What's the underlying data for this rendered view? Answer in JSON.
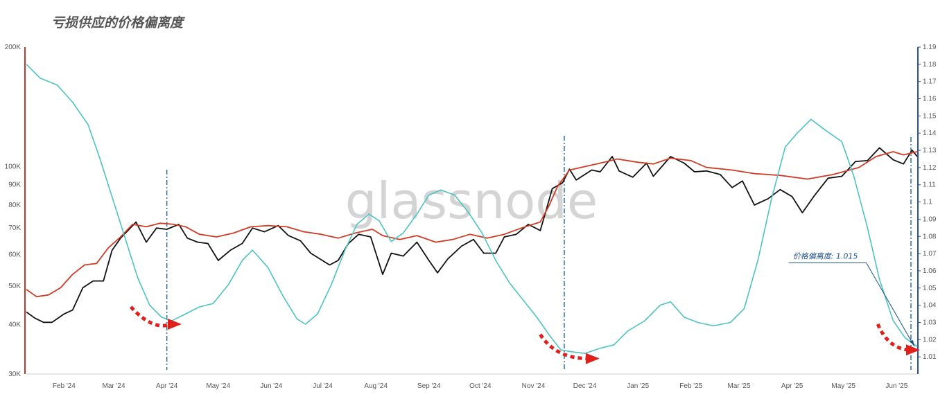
{
  "chart_data": {
    "type": "line",
    "title": "亏损供应的价格偏离度",
    "watermark": "glassnode",
    "x_ticks": [
      "Feb '24",
      "Mar '24",
      "Apr '24",
      "May '24",
      "Jun '24",
      "Jul '24",
      "Aug '24",
      "Sep '24",
      "Oct '24",
      "Nov '24",
      "Dec '24",
      "Jan '25",
      "Feb '25",
      "Mar '25",
      "Apr '25",
      "May '25",
      "Jun '25"
    ],
    "xlim": [
      "2024-01-10",
      "2025-06-13"
    ],
    "y_left": {
      "scale": "log",
      "lim": [
        30000,
        200000
      ],
      "color": "#c0392b",
      "ticks": [
        {
          "v": 30000,
          "label": "30K"
        },
        {
          "v": 40000,
          "label": "40K"
        },
        {
          "v": 50000,
          "label": "50K"
        },
        {
          "v": 60000,
          "label": "60K"
        },
        {
          "v": 70000,
          "label": "70K"
        },
        {
          "v": 80000,
          "label": "80K"
        },
        {
          "v": 90000,
          "label": "90K"
        },
        {
          "v": 100000,
          "label": "100K"
        },
        {
          "v": 200000,
          "label": "200K"
        }
      ]
    },
    "y_right": {
      "scale": "linear",
      "lim": [
        1.0,
        1.19
      ],
      "color": "#2c4f9e",
      "ticks": [
        "1.01",
        "1.02",
        "1.03",
        "1.04",
        "1.05",
        "1.06",
        "1.07",
        "1.08",
        "1.09",
        "1.1",
        "1.11",
        "1.12",
        "1.13",
        "1.14",
        "1.15",
        "1.16",
        "1.17",
        "1.18",
        "1.19"
      ]
    },
    "series": [
      {
        "axis": "left",
        "color": "#111111",
        "points": [
          [
            "2024-01-10",
            43000
          ],
          [
            "2024-01-15",
            41500
          ],
          [
            "2024-01-20",
            40500
          ],
          [
            "2024-01-25",
            40500
          ],
          [
            "2024-02-01",
            42500
          ],
          [
            "2024-02-06",
            43500
          ],
          [
            "2024-02-12",
            49500
          ],
          [
            "2024-02-18",
            51500
          ],
          [
            "2024-02-24",
            51500
          ],
          [
            "2024-02-29",
            61500
          ],
          [
            "2024-03-05",
            66000
          ],
          [
            "2024-03-10",
            69500
          ],
          [
            "2024-03-14",
            72500
          ],
          [
            "2024-03-20",
            64500
          ],
          [
            "2024-03-26",
            70000
          ],
          [
            "2024-04-01",
            69500
          ],
          [
            "2024-04-08",
            71500
          ],
          [
            "2024-04-13",
            66000
          ],
          [
            "2024-04-19",
            64500
          ],
          [
            "2024-04-25",
            64000
          ],
          [
            "2024-05-01",
            58000
          ],
          [
            "2024-05-08",
            61500
          ],
          [
            "2024-05-15",
            64000
          ],
          [
            "2024-05-21",
            70000
          ],
          [
            "2024-05-28",
            68500
          ],
          [
            "2024-06-05",
            71000
          ],
          [
            "2024-06-11",
            67000
          ],
          [
            "2024-06-18",
            65000
          ],
          [
            "2024-06-24",
            60500
          ],
          [
            "2024-07-05",
            56500
          ],
          [
            "2024-07-10",
            58000
          ],
          [
            "2024-07-16",
            64000
          ],
          [
            "2024-07-22",
            67500
          ],
          [
            "2024-07-29",
            66500
          ],
          [
            "2024-08-05",
            53500
          ],
          [
            "2024-08-10",
            60500
          ],
          [
            "2024-08-17",
            59500
          ],
          [
            "2024-08-25",
            64500
          ],
          [
            "2024-09-01",
            58000
          ],
          [
            "2024-09-06",
            54000
          ],
          [
            "2024-09-12",
            58500
          ],
          [
            "2024-09-20",
            63000
          ],
          [
            "2024-09-27",
            65500
          ],
          [
            "2024-10-03",
            60500
          ],
          [
            "2024-10-10",
            60500
          ],
          [
            "2024-10-15",
            66500
          ],
          [
            "2024-10-22",
            67500
          ],
          [
            "2024-10-29",
            71500
          ],
          [
            "2024-11-05",
            69000
          ],
          [
            "2024-11-08",
            76500
          ],
          [
            "2024-11-12",
            88000
          ],
          [
            "2024-11-18",
            91000
          ],
          [
            "2024-11-22",
            98500
          ],
          [
            "2024-11-26",
            92500
          ],
          [
            "2024-12-05",
            98000
          ],
          [
            "2024-12-10",
            97000
          ],
          [
            "2024-12-17",
            106000
          ],
          [
            "2024-12-21",
            97500
          ],
          [
            "2024-12-29",
            94000
          ],
          [
            "2025-01-06",
            102000
          ],
          [
            "2025-01-10",
            94500
          ],
          [
            "2025-01-20",
            106000
          ],
          [
            "2025-01-28",
            102000
          ],
          [
            "2025-02-03",
            97000
          ],
          [
            "2025-02-10",
            97500
          ],
          [
            "2025-02-18",
            95500
          ],
          [
            "2025-02-25",
            88500
          ],
          [
            "2025-03-03",
            92000
          ],
          [
            "2025-03-10",
            80000
          ],
          [
            "2025-03-18",
            83000
          ],
          [
            "2025-03-25",
            87500
          ],
          [
            "2025-04-01",
            84000
          ],
          [
            "2025-04-07",
            76500
          ],
          [
            "2025-04-14",
            84500
          ],
          [
            "2025-04-22",
            93500
          ],
          [
            "2025-04-30",
            94500
          ],
          [
            "2025-05-08",
            103000
          ],
          [
            "2025-05-15",
            103500
          ],
          [
            "2025-05-22",
            111500
          ],
          [
            "2025-05-30",
            104000
          ],
          [
            "2025-06-05",
            101500
          ],
          [
            "2025-06-10",
            110000
          ],
          [
            "2025-06-13",
            106000
          ]
        ]
      },
      {
        "axis": "left",
        "color": "#d13a24",
        "points": [
          [
            "2024-01-10",
            49000
          ],
          [
            "2024-01-16",
            47000
          ],
          [
            "2024-01-23",
            47500
          ],
          [
            "2024-01-30",
            49500
          ],
          [
            "2024-02-06",
            53500
          ],
          [
            "2024-02-13",
            56500
          ],
          [
            "2024-02-20",
            57000
          ],
          [
            "2024-02-27",
            62500
          ],
          [
            "2024-03-05",
            66500
          ],
          [
            "2024-03-12",
            71500
          ],
          [
            "2024-03-20",
            70500
          ],
          [
            "2024-03-28",
            72000
          ],
          [
            "2024-04-05",
            71500
          ],
          [
            "2024-04-12",
            70500
          ],
          [
            "2024-04-20",
            67500
          ],
          [
            "2024-04-30",
            66500
          ],
          [
            "2024-05-10",
            68000
          ],
          [
            "2024-05-20",
            70500
          ],
          [
            "2024-05-30",
            71000
          ],
          [
            "2024-06-10",
            70500
          ],
          [
            "2024-06-20",
            68500
          ],
          [
            "2024-06-30",
            67500
          ],
          [
            "2024-07-10",
            66000
          ],
          [
            "2024-07-20",
            68000
          ],
          [
            "2024-07-30",
            69500
          ],
          [
            "2024-08-05",
            67000
          ],
          [
            "2024-08-15",
            65500
          ],
          [
            "2024-08-25",
            67000
          ],
          [
            "2024-09-05",
            64500
          ],
          [
            "2024-09-15",
            65500
          ],
          [
            "2024-09-25",
            67500
          ],
          [
            "2024-10-05",
            66000
          ],
          [
            "2024-10-15",
            67500
          ],
          [
            "2024-10-25",
            70000
          ],
          [
            "2024-11-05",
            72500
          ],
          [
            "2024-11-10",
            79500
          ],
          [
            "2024-11-15",
            89000
          ],
          [
            "2024-11-22",
            98000
          ],
          [
            "2024-12-01",
            100000
          ],
          [
            "2024-12-10",
            102000
          ],
          [
            "2024-12-20",
            104500
          ],
          [
            "2025-01-01",
            102500
          ],
          [
            "2025-01-10",
            101500
          ],
          [
            "2025-01-20",
            105000
          ],
          [
            "2025-02-01",
            103500
          ],
          [
            "2025-02-10",
            99500
          ],
          [
            "2025-02-25",
            98000
          ],
          [
            "2025-03-10",
            96000
          ],
          [
            "2025-03-25",
            95000
          ],
          [
            "2025-04-10",
            93000
          ],
          [
            "2025-04-25",
            95500
          ],
          [
            "2025-05-10",
            99500
          ],
          [
            "2025-05-20",
            106000
          ],
          [
            "2025-05-30",
            109000
          ],
          [
            "2025-06-05",
            107000
          ],
          [
            "2025-06-13",
            109000
          ]
        ]
      },
      {
        "axis": "right",
        "color": "#4cc3c1",
        "points": [
          [
            "2024-01-10",
            1.18
          ],
          [
            "2024-01-18",
            1.172
          ],
          [
            "2024-01-28",
            1.168
          ],
          [
            "2024-02-06",
            1.158
          ],
          [
            "2024-02-15",
            1.145
          ],
          [
            "2024-02-22",
            1.125
          ],
          [
            "2024-03-01",
            1.1
          ],
          [
            "2024-03-08",
            1.078
          ],
          [
            "2024-03-15",
            1.056
          ],
          [
            "2024-03-22",
            1.04
          ],
          [
            "2024-03-29",
            1.033
          ],
          [
            "2024-04-04",
            1.031
          ],
          [
            "2024-04-12",
            1.035
          ],
          [
            "2024-04-20",
            1.039
          ],
          [
            "2024-04-28",
            1.041
          ],
          [
            "2024-05-07",
            1.052
          ],
          [
            "2024-05-15",
            1.066
          ],
          [
            "2024-05-21",
            1.072
          ],
          [
            "2024-05-30",
            1.062
          ],
          [
            "2024-06-08",
            1.045
          ],
          [
            "2024-06-16",
            1.032
          ],
          [
            "2024-06-21",
            1.029
          ],
          [
            "2024-06-28",
            1.035
          ],
          [
            "2024-07-06",
            1.052
          ],
          [
            "2024-07-14",
            1.072
          ],
          [
            "2024-07-21",
            1.087
          ],
          [
            "2024-07-28",
            1.093
          ],
          [
            "2024-08-03",
            1.089
          ],
          [
            "2024-08-10",
            1.077
          ],
          [
            "2024-08-17",
            1.082
          ],
          [
            "2024-08-25",
            1.093
          ],
          [
            "2024-09-01",
            1.104
          ],
          [
            "2024-09-08",
            1.107
          ],
          [
            "2024-09-16",
            1.104
          ],
          [
            "2024-09-24",
            1.094
          ],
          [
            "2024-10-02",
            1.082
          ],
          [
            "2024-10-10",
            1.066
          ],
          [
            "2024-10-18",
            1.053
          ],
          [
            "2024-10-26",
            1.043
          ],
          [
            "2024-11-03",
            1.033
          ],
          [
            "2024-11-10",
            1.023
          ],
          [
            "2024-11-17",
            1.014
          ],
          [
            "2024-11-23",
            1.013
          ],
          [
            "2024-12-01",
            1.012
          ],
          [
            "2024-12-10",
            1.015
          ],
          [
            "2024-12-18",
            1.017
          ],
          [
            "2024-12-26",
            1.025
          ],
          [
            "2025-01-05",
            1.031
          ],
          [
            "2025-01-14",
            1.04
          ],
          [
            "2025-01-20",
            1.042
          ],
          [
            "2025-01-28",
            1.033
          ],
          [
            "2025-02-05",
            1.03
          ],
          [
            "2025-02-14",
            1.028
          ],
          [
            "2025-02-24",
            1.03
          ],
          [
            "2025-03-04",
            1.038
          ],
          [
            "2025-03-12",
            1.066
          ],
          [
            "2025-03-20",
            1.102
          ],
          [
            "2025-03-28",
            1.132
          ],
          [
            "2025-04-04",
            1.14
          ],
          [
            "2025-04-12",
            1.148
          ],
          [
            "2025-04-20",
            1.142
          ],
          [
            "2025-04-30",
            1.135
          ],
          [
            "2025-05-07",
            1.115
          ],
          [
            "2025-05-15",
            1.085
          ],
          [
            "2025-05-22",
            1.055
          ],
          [
            "2025-05-30",
            1.031
          ],
          [
            "2025-06-06",
            1.021
          ],
          [
            "2025-06-13",
            1.016
          ]
        ]
      }
    ],
    "vlines": [
      "2024-04-01",
      "2024-11-19",
      "2025-06-13"
    ],
    "arrows": [
      {
        "from": [
          "2024-03-11",
          1.039
        ],
        "via": [
          "2024-03-24",
          1.029
        ],
        "to": [
          "2024-04-08",
          1.029
        ]
      },
      {
        "from": [
          "2024-11-05",
          1.023
        ],
        "via": [
          "2024-11-14",
          1.013
        ],
        "to": [
          "2024-12-08",
          1.009
        ]
      },
      {
        "from": [
          "2025-05-21",
          1.029
        ],
        "via": [
          "2025-05-27",
          1.019
        ],
        "to": [
          "2025-06-13",
          1.014
        ]
      }
    ],
    "annotation": {
      "text": "价格偏离度: 1.015",
      "anchor": [
        "2025-03-30",
        1.063
      ],
      "target": [
        "2025-06-13",
        1.016
      ]
    }
  }
}
